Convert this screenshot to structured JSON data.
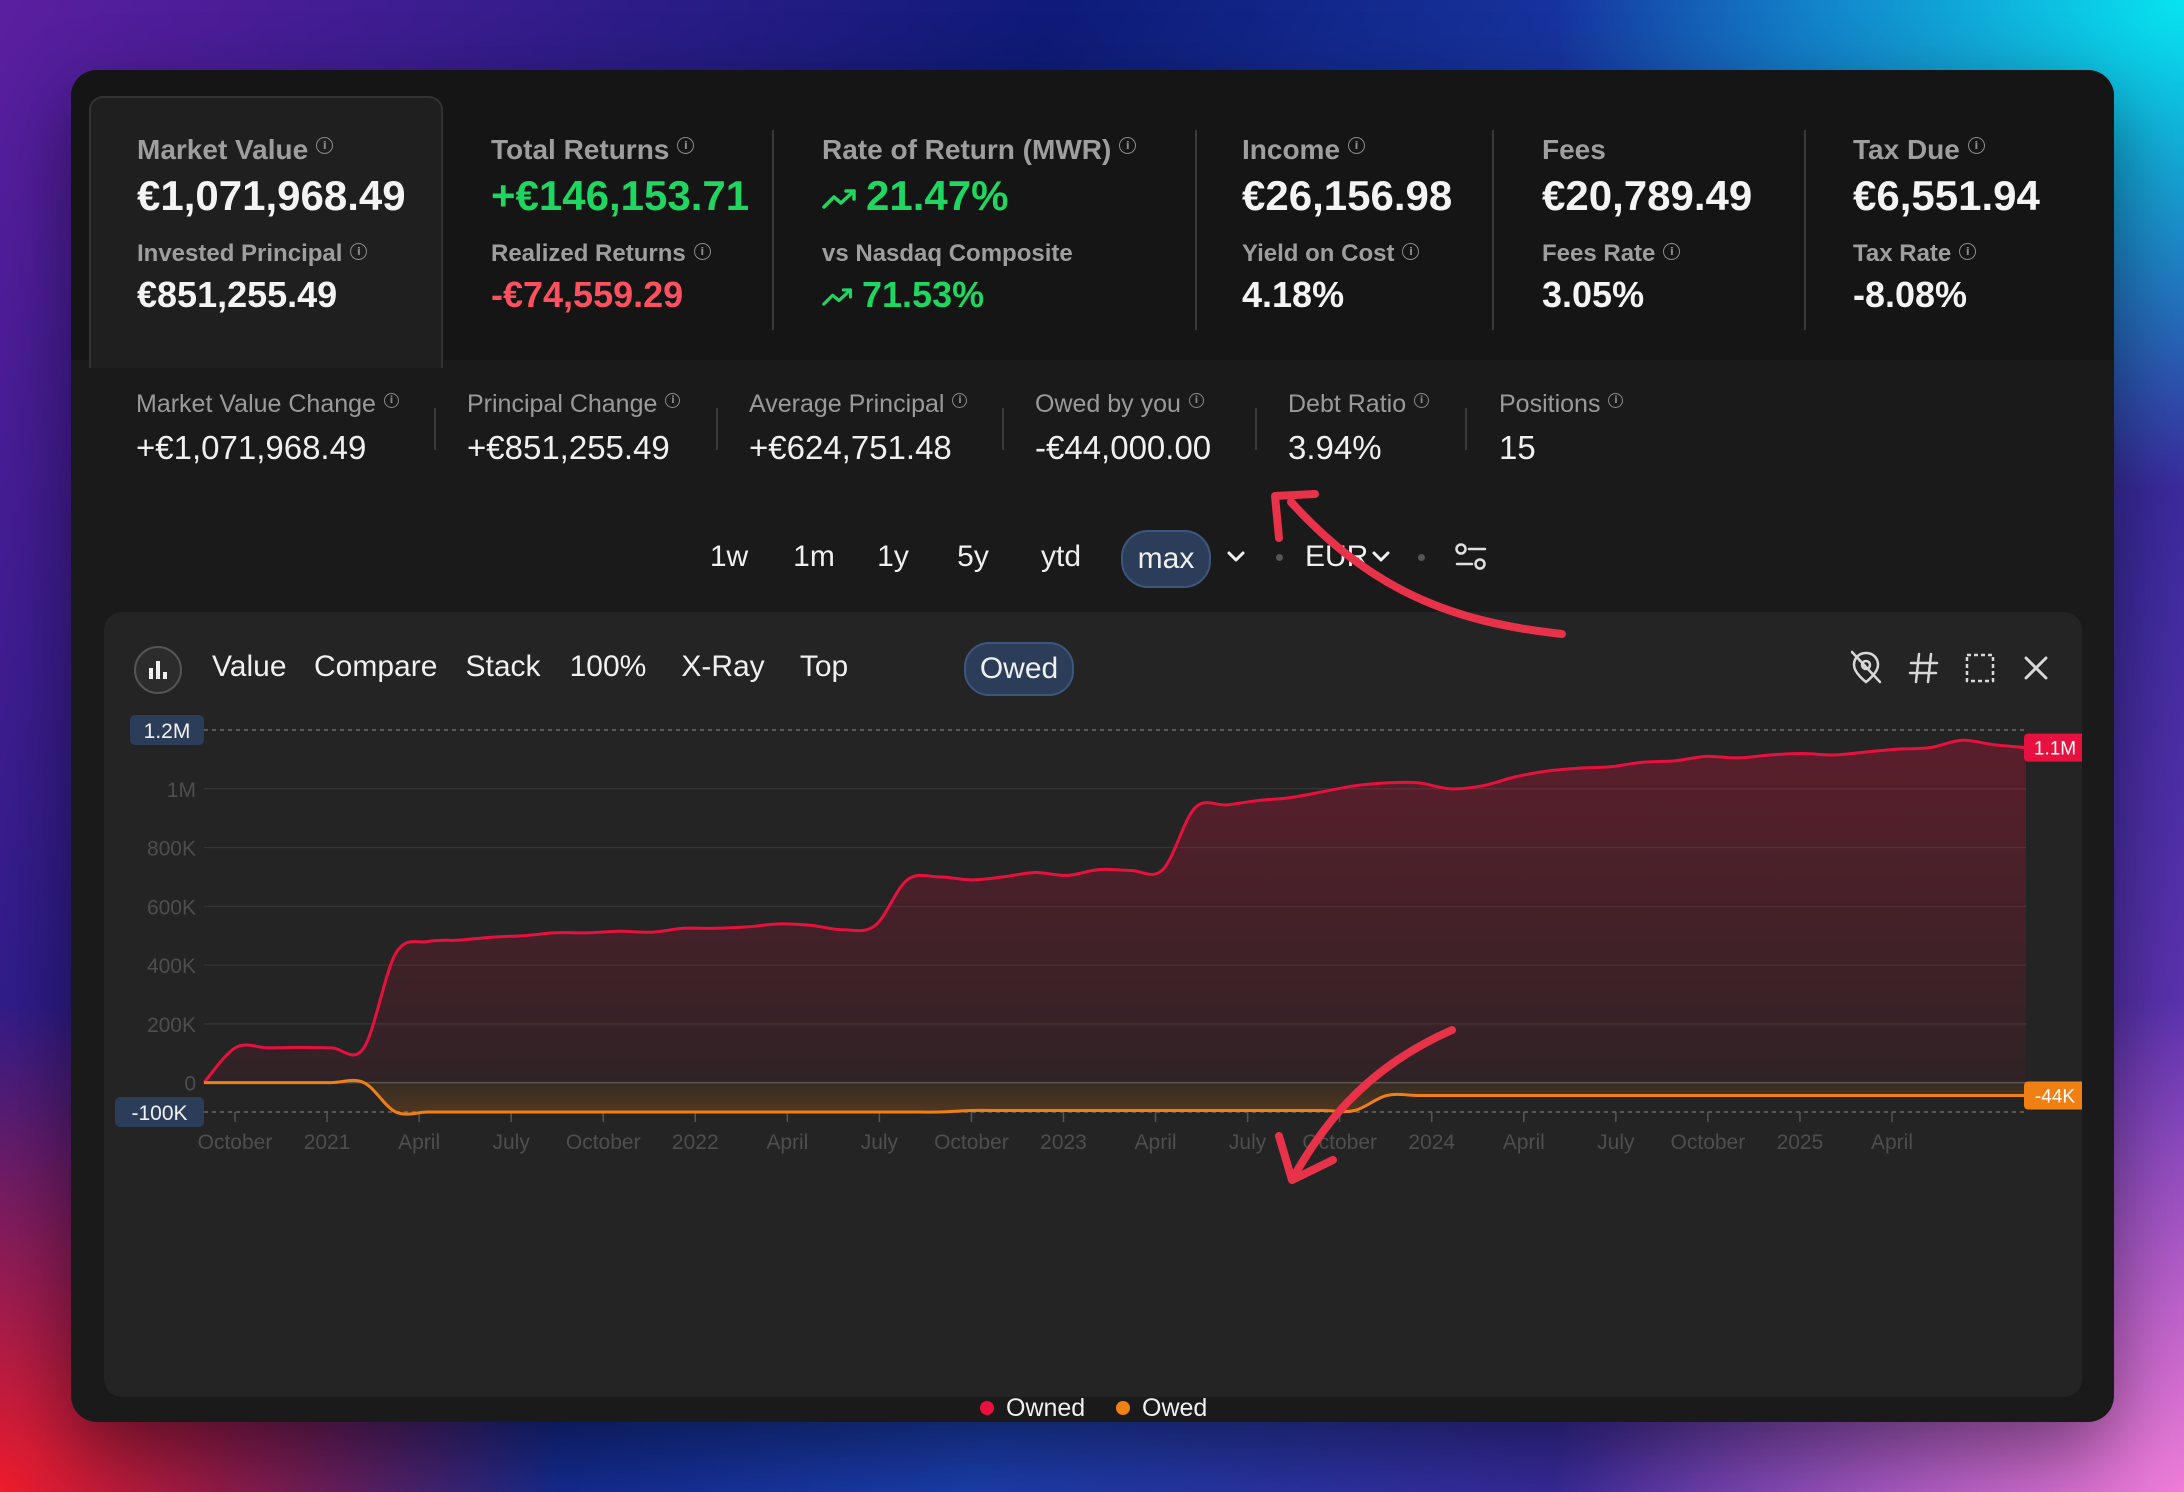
{
  "stats": [
    {
      "label": "Market Value",
      "value": "€1,071,968.49",
      "label2": "Invested Principal",
      "value2": "€851,255.49"
    },
    {
      "label": "Total Returns",
      "value": "+€146,153.71",
      "label2": "Realized Returns",
      "value2": "-€74,559.29"
    },
    {
      "label": "Rate of Return (MWR)",
      "value": "21.47%",
      "label2": "vs Nasdaq Composite",
      "value2": "71.53%"
    },
    {
      "label": "Income",
      "value": "€26,156.98",
      "label2": "Yield on Cost",
      "value2": "4.18%"
    },
    {
      "label": "Fees",
      "value": "€20,789.49",
      "label2": "Fees Rate",
      "value2": "3.05%"
    },
    {
      "label": "Tax Due",
      "value": "€6,551.94",
      "label2": "Tax Rate",
      "value2": "-8.08%"
    }
  ],
  "substats": [
    {
      "label": "Market Value Change",
      "value": "+€1,071,968.49"
    },
    {
      "label": "Principal Change",
      "value": "+€851,255.49"
    },
    {
      "label": "Average Principal",
      "value": "+€624,751.48"
    },
    {
      "label": "Owed by you",
      "value": "-€44,000.00"
    },
    {
      "label": "Debt Ratio",
      "value": "3.94%"
    },
    {
      "label": "Positions",
      "value": "15"
    }
  ],
  "ranges": [
    "1w",
    "1m",
    "1y",
    "5y",
    "ytd",
    "max"
  ],
  "active_range": "max",
  "currency": "EUR",
  "chart_tabs": [
    "Value",
    "Compare",
    "Stack",
    "100%",
    "X-Ray",
    "Top",
    "Owed"
  ],
  "active_chart_tab": "Owed",
  "icons": {
    "chart_mode": "bar-chart-icon",
    "hide": "eye-off-icon",
    "hash": "hash-icon",
    "select": "dashed-select-icon",
    "close": "close-icon",
    "filters": "sliders-icon",
    "range_menu": "chevron-down-icon",
    "currency_menu": "chevron-down-icon",
    "trend": "trending-up-icon"
  },
  "colors": {
    "owned": "#e8103e",
    "owed": "#f07f14",
    "positive": "#1ed660",
    "negative": "#ff5060",
    "active_tab_bg": "#2c3d5a",
    "annotation_arrow": "#e8324a"
  },
  "chart_data": {
    "type": "area",
    "title": "",
    "xlabel": "",
    "ylabel": "",
    "ylim": [
      -100000,
      1200000
    ],
    "y_ticks": [
      {
        "value": 1200000,
        "label": "1.2M"
      },
      {
        "value": 1000000,
        "label": "1M"
      },
      {
        "value": 800000,
        "label": "800K"
      },
      {
        "value": 600000,
        "label": "600K"
      },
      {
        "value": 400000,
        "label": "400K"
      },
      {
        "value": 200000,
        "label": "200K"
      },
      {
        "value": 0,
        "label": "0"
      },
      {
        "value": -100000,
        "label": "-100K"
      }
    ],
    "x_ticks": [
      "October",
      "2021",
      "April",
      "July",
      "October",
      "2022",
      "April",
      "July",
      "October",
      "2023",
      "April",
      "July",
      "October",
      "2024",
      "April",
      "July",
      "October",
      "2025",
      "April"
    ],
    "x": [
      "2020-09",
      "2020-10",
      "2020-11",
      "2020-12",
      "2021-01",
      "2021-02",
      "2021-03",
      "2021-04",
      "2021-05",
      "2021-06",
      "2021-07",
      "2021-08",
      "2021-09",
      "2021-10",
      "2021-11",
      "2021-12",
      "2022-01",
      "2022-02",
      "2022-03",
      "2022-04",
      "2022-05",
      "2022-06",
      "2022-07",
      "2022-08",
      "2022-09",
      "2022-10",
      "2022-11",
      "2022-12",
      "2023-01",
      "2023-02",
      "2023-03",
      "2023-04",
      "2023-05",
      "2023-06",
      "2023-07",
      "2023-08",
      "2023-09",
      "2023-10",
      "2023-11",
      "2023-12",
      "2024-01",
      "2024-02",
      "2024-03",
      "2024-04",
      "2024-05",
      "2024-06",
      "2024-07",
      "2024-08",
      "2024-09",
      "2024-10",
      "2024-11",
      "2024-12",
      "2025-01",
      "2025-02",
      "2025-03",
      "2025-04",
      "2025-05",
      "2025-06"
    ],
    "series": [
      {
        "name": "Owned",
        "values": [
          0,
          120000,
          118000,
          120000,
          118000,
          118000,
          440000,
          480000,
          485000,
          495000,
          500000,
          510000,
          510000,
          515000,
          512000,
          525000,
          525000,
          530000,
          540000,
          535000,
          520000,
          535000,
          690000,
          700000,
          690000,
          700000,
          715000,
          705000,
          725000,
          722000,
          725000,
          935000,
          945000,
          960000,
          970000,
          990000,
          1010000,
          1020000,
          1020000,
          1000000,
          1010000,
          1040000,
          1060000,
          1070000,
          1075000,
          1090000,
          1095000,
          1110000,
          1105000,
          1115000,
          1120000,
          1115000,
          1125000,
          1135000,
          1140000,
          1165000,
          1150000,
          1140000
        ]
      },
      {
        "name": "Owed",
        "values": [
          0,
          0,
          0,
          0,
          0,
          0,
          -100000,
          -100000,
          -100000,
          -100000,
          -100000,
          -100000,
          -100000,
          -100000,
          -100000,
          -100000,
          -100000,
          -100000,
          -100000,
          -100000,
          -100000,
          -100000,
          -100000,
          -100000,
          -95000,
          -95000,
          -95000,
          -95000,
          -95000,
          -95000,
          -95000,
          -95000,
          -95000,
          -95000,
          -95000,
          -95000,
          -95000,
          -44000,
          -44000,
          -44000,
          -44000,
          -44000,
          -44000,
          -44000,
          -44000,
          -44000,
          -44000,
          -44000,
          -44000,
          -44000,
          -44000,
          -44000,
          -44000,
          -44000,
          -44000,
          -44000,
          -44000,
          -44000
        ]
      }
    ],
    "end_labels": [
      "1.1M",
      "-44K"
    ],
    "top_label": "1.2M",
    "bottom_label": "-100K",
    "legend_position": "bottom-center",
    "grid": true
  }
}
